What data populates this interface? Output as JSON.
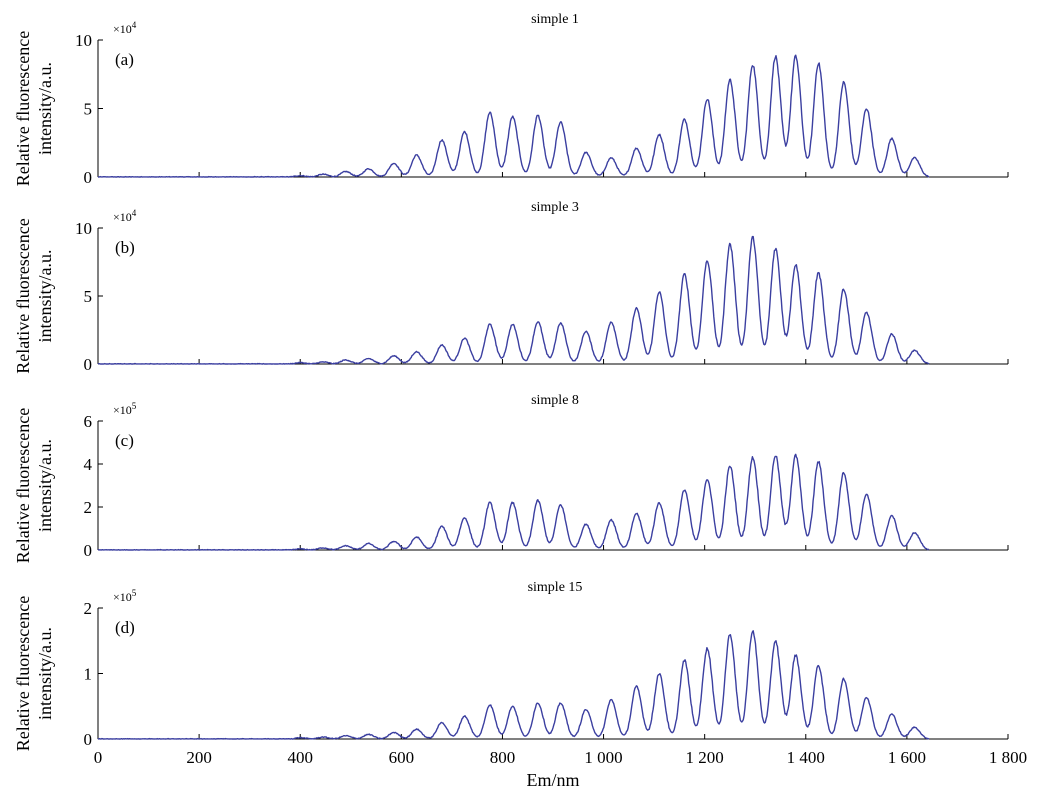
{
  "figure": {
    "xlabel": "Em/nm",
    "x_ticks": [
      "0",
      "200",
      "400",
      "600",
      "800",
      "1 000",
      "1 200",
      "1 400",
      "1 600",
      "1 800"
    ],
    "line_color": "#3b3fa0"
  },
  "chart_data": [
    {
      "type": "line",
      "panel_id": "(a)",
      "title": "simple 1",
      "ylabel_lines": [
        "Relative fluorescence",
        "intensity/a.u."
      ],
      "multiplier": {
        "base": "×10",
        "exp": "4"
      },
      "xlim": [
        0,
        1800
      ],
      "ylim": [
        0,
        10
      ],
      "y_ticks": [
        "0",
        "5",
        "10"
      ],
      "grid": false,
      "peaks": {
        "x": [
          400,
          445,
          490,
          535,
          585,
          630,
          680,
          725,
          775,
          820,
          870,
          915,
          965,
          1015,
          1065,
          1110,
          1160,
          1205,
          1250,
          1295,
          1340,
          1380,
          1425,
          1475,
          1520,
          1570,
          1615
        ],
        "y": [
          0.1,
          0.2,
          0.4,
          0.6,
          1.0,
          1.6,
          2.7,
          3.3,
          4.7,
          4.4,
          4.5,
          4.0,
          1.8,
          1.4,
          2.1,
          3.1,
          4.2,
          5.7,
          7.1,
          8.2,
          8.8,
          8.8,
          8.3,
          6.9,
          5.0,
          2.8,
          1.4
        ]
      }
    },
    {
      "type": "line",
      "panel_id": "(b)",
      "title": "simple 3",
      "ylabel_lines": [
        "Relative fluorescence",
        "intensity/a.u."
      ],
      "multiplier": {
        "base": "×10",
        "exp": "4"
      },
      "xlim": [
        0,
        1800
      ],
      "ylim": [
        0,
        10
      ],
      "y_ticks": [
        "0",
        "5",
        "10"
      ],
      "grid": false,
      "peaks": {
        "x": [
          400,
          445,
          490,
          535,
          585,
          630,
          680,
          725,
          775,
          820,
          870,
          915,
          965,
          1015,
          1065,
          1110,
          1160,
          1205,
          1250,
          1295,
          1340,
          1380,
          1425,
          1475,
          1520,
          1570,
          1615
        ],
        "y": [
          0.1,
          0.15,
          0.3,
          0.4,
          0.6,
          0.9,
          1.4,
          1.9,
          2.9,
          2.9,
          3.1,
          3.0,
          2.4,
          3.1,
          4.1,
          5.3,
          6.6,
          7.6,
          8.8,
          9.3,
          8.5,
          7.3,
          6.7,
          5.5,
          3.8,
          2.2,
          1.0
        ]
      }
    },
    {
      "type": "line",
      "panel_id": "(c)",
      "title": "simple 8",
      "ylabel_lines": [
        "Relative fluorescence",
        "intensity/a.u."
      ],
      "multiplier": {
        "base": "×10",
        "exp": "5"
      },
      "xlim": [
        0,
        1800
      ],
      "ylim": [
        0,
        6
      ],
      "y_ticks": [
        "0",
        "2",
        "4",
        "6"
      ],
      "grid": false,
      "peaks": {
        "x": [
          400,
          445,
          490,
          535,
          585,
          630,
          680,
          725,
          775,
          820,
          870,
          915,
          965,
          1015,
          1065,
          1110,
          1160,
          1205,
          1250,
          1295,
          1340,
          1380,
          1425,
          1475,
          1520,
          1570,
          1615
        ],
        "y": [
          0.05,
          0.1,
          0.2,
          0.3,
          0.4,
          0.6,
          1.1,
          1.5,
          2.2,
          2.2,
          2.3,
          2.1,
          1.2,
          1.4,
          1.7,
          2.2,
          2.8,
          3.3,
          3.9,
          4.3,
          4.4,
          4.4,
          4.1,
          3.6,
          2.6,
          1.6,
          0.8
        ]
      }
    },
    {
      "type": "line",
      "panel_id": "(d)",
      "title": "simple 15",
      "ylabel_lines": [
        "Relative fluorescence",
        "intensity/a.u."
      ],
      "multiplier": {
        "base": "×10",
        "exp": "5"
      },
      "xlim": [
        0,
        1800
      ],
      "ylim": [
        0,
        2
      ],
      "y_ticks": [
        "0",
        "1",
        "2"
      ],
      "grid": false,
      "peaks": {
        "x": [
          400,
          445,
          490,
          535,
          585,
          630,
          680,
          725,
          775,
          820,
          870,
          915,
          965,
          1015,
          1065,
          1110,
          1160,
          1205,
          1250,
          1295,
          1340,
          1380,
          1425,
          1475,
          1520,
          1570,
          1615
        ],
        "y": [
          0.02,
          0.03,
          0.05,
          0.07,
          0.1,
          0.15,
          0.25,
          0.35,
          0.52,
          0.5,
          0.55,
          0.55,
          0.45,
          0.6,
          0.8,
          1.0,
          1.2,
          1.38,
          1.6,
          1.65,
          1.5,
          1.28,
          1.12,
          0.92,
          0.64,
          0.38,
          0.18
        ]
      }
    }
  ]
}
